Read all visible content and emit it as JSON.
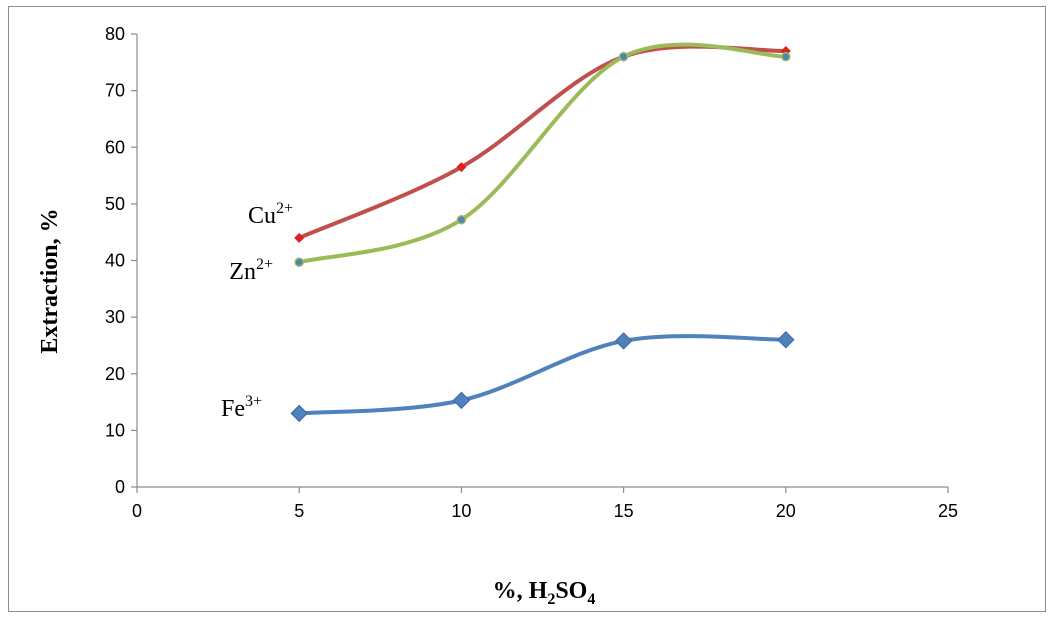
{
  "chart_data": {
    "type": "line",
    "xlabel": {
      "main": "%, H",
      "sub1": "2",
      "mid": "SO",
      "sub2": "4"
    },
    "ylabel": "Extraction, %",
    "xlim": [
      0,
      25
    ],
    "ylim": [
      0,
      80
    ],
    "xticks": [
      0,
      5,
      10,
      15,
      20,
      25
    ],
    "yticks": [
      0,
      10,
      20,
      30,
      40,
      50,
      60,
      70,
      80
    ],
    "grid": false,
    "x": [
      5,
      10,
      15,
      20
    ],
    "series": [
      {
        "id": "fe",
        "label_base": "Fe",
        "label_sup": "3+",
        "values": [
          13,
          15.3,
          25.8,
          26
        ],
        "color": "#4f81bd",
        "marker": "diamond"
      },
      {
        "id": "cu",
        "label_base": "Cu",
        "label_sup": "2+",
        "values": [
          44,
          56.5,
          76,
          77
        ],
        "color": "#c0504d",
        "marker": "diamond-small"
      },
      {
        "id": "zn",
        "label_base": "Zn",
        "label_sup": "2+",
        "values": [
          39.7,
          47.2,
          76,
          76
        ],
        "color": "#9bbb59",
        "marker": "circle"
      }
    ]
  }
}
